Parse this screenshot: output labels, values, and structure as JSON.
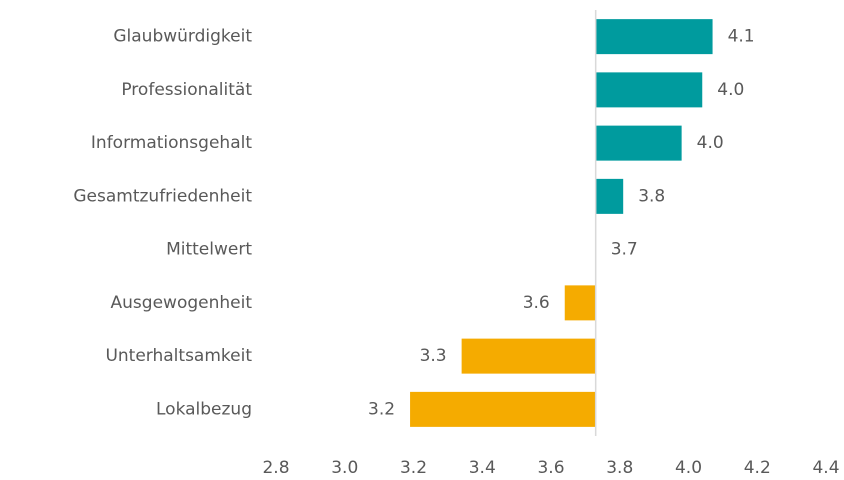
{
  "chart_data": {
    "type": "diverging-bar",
    "categories": [
      "Glaubwürdigkeit",
      "Professionalität",
      "Informationsgehalt",
      "Gesamtzufriedenheit",
      "Mittelwert",
      "Ausgewogenheit",
      "Unterhaltsamkeit",
      "Lokalbezug"
    ],
    "values": [
      4.07,
      4.04,
      3.98,
      3.81,
      3.73,
      3.64,
      3.34,
      3.19
    ],
    "value_labels": [
      "4.1",
      "4.0",
      "4.0",
      "3.8",
      "3.7",
      "3.6",
      "3.3",
      "3.2"
    ],
    "colors": [
      "#009b9e",
      "#009b9e",
      "#009b9e",
      "#009b9e",
      "#009b9e",
      "#f5ab00",
      "#f5ab00",
      "#f5ab00"
    ],
    "baseline_category": 4,
    "xlim": [
      2.8,
      4.4
    ],
    "xticks": [
      2.8,
      {
        "value": 3.0,
        "label": "3.0"
      },
      3.2,
      3.4,
      3.6,
      3.8,
      {
        "value": 4.0,
        "label": "4.0"
      },
      4.2,
      4.4
    ],
    "grid": false
  }
}
